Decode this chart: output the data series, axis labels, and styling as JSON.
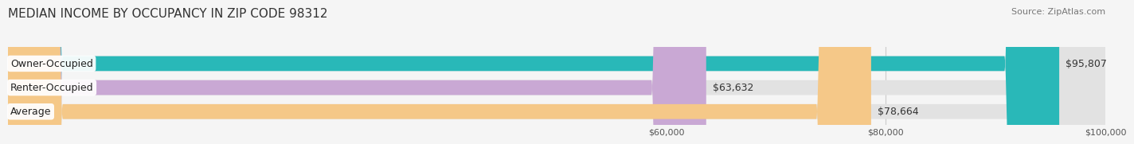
{
  "title": "MEDIAN INCOME BY OCCUPANCY IN ZIP CODE 98312",
  "source": "Source: ZipAtlas.com",
  "categories": [
    "Owner-Occupied",
    "Renter-Occupied",
    "Average"
  ],
  "values": [
    95807,
    63632,
    78664
  ],
  "bar_colors": [
    "#29b8b8",
    "#c9a8d4",
    "#f5c888"
  ],
  "bar_labels": [
    "$95,807",
    "$63,632",
    "$78,664"
  ],
  "xlim": [
    0,
    100000
  ],
  "xticks": [
    60000,
    80000,
    100000
  ],
  "xtick_labels": [
    "$60,000",
    "$80,000",
    "$100,000"
  ],
  "background_color": "#f5f5f5",
  "bar_background_color": "#e2e2e2",
  "title_fontsize": 11,
  "source_fontsize": 8,
  "label_fontsize": 9,
  "tick_fontsize": 8
}
